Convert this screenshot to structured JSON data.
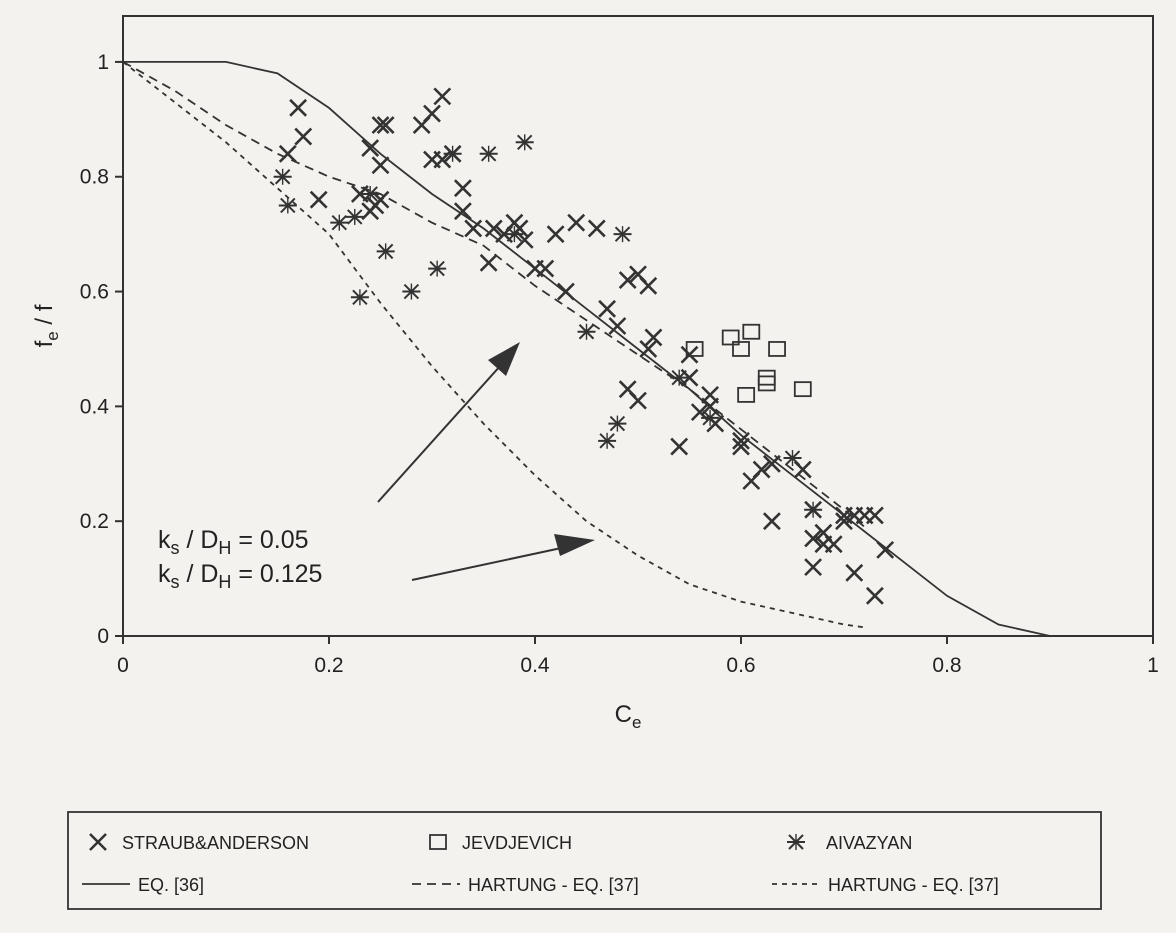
{
  "chart_data": {
    "type": "scatter",
    "title": "",
    "xlabel": "Ce",
    "ylabel": "fe/f",
    "xlim": [
      0,
      1
    ],
    "ylim": [
      0,
      1.08
    ],
    "x_ticks": [
      "0",
      "0.2",
      "0.4",
      "0.6",
      "0.8",
      "1"
    ],
    "y_ticks": [
      "0",
      "0.2",
      "0.4",
      "0.6",
      "0.8",
      "1"
    ],
    "grid": false,
    "legend_position": "below plot",
    "annotations": [
      "k_s / D_H = 0.05",
      "k_s / D_H = 0.125"
    ],
    "series": [
      {
        "name": "STRAUB&ANDERSON",
        "marker": "x",
        "points": [
          [
            0.16,
            0.84
          ],
          [
            0.17,
            0.92
          ],
          [
            0.175,
            0.87
          ],
          [
            0.19,
            0.76
          ],
          [
            0.23,
            0.77
          ],
          [
            0.24,
            0.74
          ],
          [
            0.245,
            0.75
          ],
          [
            0.25,
            0.82
          ],
          [
            0.25,
            0.89
          ],
          [
            0.255,
            0.89
          ],
          [
            0.25,
            0.76
          ],
          [
            0.24,
            0.85
          ],
          [
            0.29,
            0.89
          ],
          [
            0.3,
            0.91
          ],
          [
            0.3,
            0.83
          ],
          [
            0.31,
            0.94
          ],
          [
            0.32,
            0.84
          ],
          [
            0.31,
            0.83
          ],
          [
            0.33,
            0.78
          ],
          [
            0.33,
            0.74
          ],
          [
            0.34,
            0.71
          ],
          [
            0.355,
            0.65
          ],
          [
            0.36,
            0.71
          ],
          [
            0.37,
            0.7
          ],
          [
            0.38,
            0.72
          ],
          [
            0.385,
            0.71
          ],
          [
            0.39,
            0.69
          ],
          [
            0.4,
            0.64
          ],
          [
            0.41,
            0.64
          ],
          [
            0.42,
            0.7
          ],
          [
            0.43,
            0.6
          ],
          [
            0.44,
            0.72
          ],
          [
            0.46,
            0.71
          ],
          [
            0.47,
            0.57
          ],
          [
            0.48,
            0.54
          ],
          [
            0.49,
            0.62
          ],
          [
            0.5,
            0.63
          ],
          [
            0.51,
            0.61
          ],
          [
            0.515,
            0.52
          ],
          [
            0.51,
            0.5
          ],
          [
            0.5,
            0.41
          ],
          [
            0.49,
            0.43
          ],
          [
            0.55,
            0.49
          ],
          [
            0.55,
            0.45
          ],
          [
            0.54,
            0.33
          ],
          [
            0.56,
            0.39
          ],
          [
            0.57,
            0.42
          ],
          [
            0.57,
            0.4
          ],
          [
            0.575,
            0.37
          ],
          [
            0.6,
            0.33
          ],
          [
            0.6,
            0.34
          ],
          [
            0.61,
            0.27
          ],
          [
            0.62,
            0.29
          ],
          [
            0.63,
            0.3
          ],
          [
            0.63,
            0.2
          ],
          [
            0.66,
            0.29
          ],
          [
            0.67,
            0.22
          ],
          [
            0.67,
            0.17
          ],
          [
            0.68,
            0.18
          ],
          [
            0.68,
            0.16
          ],
          [
            0.69,
            0.16
          ],
          [
            0.7,
            0.2
          ],
          [
            0.7,
            0.21
          ],
          [
            0.71,
            0.21
          ],
          [
            0.72,
            0.21
          ],
          [
            0.73,
            0.21
          ],
          [
            0.74,
            0.15
          ],
          [
            0.71,
            0.11
          ],
          [
            0.73,
            0.07
          ],
          [
            0.67,
            0.12
          ]
        ]
      },
      {
        "name": "JEVDJEVICH",
        "marker": "square",
        "points": [
          [
            0.555,
            0.5
          ],
          [
            0.59,
            0.52
          ],
          [
            0.6,
            0.5
          ],
          [
            0.61,
            0.53
          ],
          [
            0.605,
            0.42
          ],
          [
            0.625,
            0.45
          ],
          [
            0.625,
            0.44
          ],
          [
            0.635,
            0.5
          ],
          [
            0.66,
            0.43
          ]
        ]
      },
      {
        "name": "AIVAZYAN",
        "marker": "asterisk",
        "points": [
          [
            0.155,
            0.8
          ],
          [
            0.16,
            0.75
          ],
          [
            0.21,
            0.72
          ],
          [
            0.225,
            0.73
          ],
          [
            0.23,
            0.59
          ],
          [
            0.24,
            0.77
          ],
          [
            0.255,
            0.67
          ],
          [
            0.28,
            0.6
          ],
          [
            0.305,
            0.64
          ],
          [
            0.32,
            0.84
          ],
          [
            0.355,
            0.84
          ],
          [
            0.39,
            0.86
          ],
          [
            0.38,
            0.7
          ],
          [
            0.45,
            0.53
          ],
          [
            0.485,
            0.7
          ],
          [
            0.47,
            0.34
          ],
          [
            0.48,
            0.37
          ],
          [
            0.54,
            0.45
          ],
          [
            0.57,
            0.38
          ],
          [
            0.65,
            0.31
          ],
          [
            0.67,
            0.22
          ]
        ]
      },
      {
        "name": "EQ. [36]",
        "style": "solid",
        "x": [
          0,
          0.05,
          0.1,
          0.15,
          0.2,
          0.25,
          0.3,
          0.35,
          0.4,
          0.45,
          0.5,
          0.55,
          0.6,
          0.65,
          0.7,
          0.75,
          0.8,
          0.85,
          0.9,
          1.0
        ],
        "y": [
          1,
          1,
          1,
          0.98,
          0.92,
          0.84,
          0.77,
          0.71,
          0.64,
          0.57,
          0.5,
          0.43,
          0.35,
          0.28,
          0.21,
          0.14,
          0.07,
          0.02,
          0,
          0
        ]
      },
      {
        "name": "HARTUNG - EQ. [37]",
        "style": "dashed",
        "curve": "k_s / D_H = 0.05",
        "x": [
          0,
          0.05,
          0.1,
          0.15,
          0.2,
          0.25,
          0.3,
          0.35,
          0.4,
          0.45,
          0.5,
          0.55,
          0.6,
          0.65,
          0.7,
          0.72
        ],
        "y": [
          1,
          0.95,
          0.89,
          0.84,
          0.8,
          0.77,
          0.72,
          0.68,
          0.61,
          0.55,
          0.49,
          0.43,
          0.36,
          0.29,
          0.22,
          0.19
        ]
      },
      {
        "name": "HARTUNG - EQ. [37]",
        "style": "dashed-fine",
        "curve": "k_s / D_H = 0.125",
        "x": [
          0,
          0.05,
          0.1,
          0.15,
          0.2,
          0.25,
          0.3,
          0.35,
          0.4,
          0.45,
          0.5,
          0.55,
          0.6,
          0.65,
          0.7,
          0.72
        ],
        "y": [
          1,
          0.93,
          0.86,
          0.78,
          0.7,
          0.58,
          0.47,
          0.37,
          0.28,
          0.2,
          0.14,
          0.09,
          0.06,
          0.04,
          0.02,
          0.015
        ]
      }
    ],
    "legend": [
      {
        "label": "STRAUB&ANDERSON",
        "marker": "x"
      },
      {
        "label": "JEVDJEVICH",
        "marker": "square"
      },
      {
        "label": "AIVAZYAN",
        "marker": "asterisk"
      },
      {
        "label": "EQ. [36]",
        "marker": "solid"
      },
      {
        "label": "HARTUNG - EQ. [37]",
        "marker": "dashed"
      },
      {
        "label": "HARTUNG - EQ. [37]",
        "marker": "dashed-fine"
      }
    ],
    "colors": {
      "ink": "#333333",
      "plot_bg": "#f4f2ee"
    }
  }
}
